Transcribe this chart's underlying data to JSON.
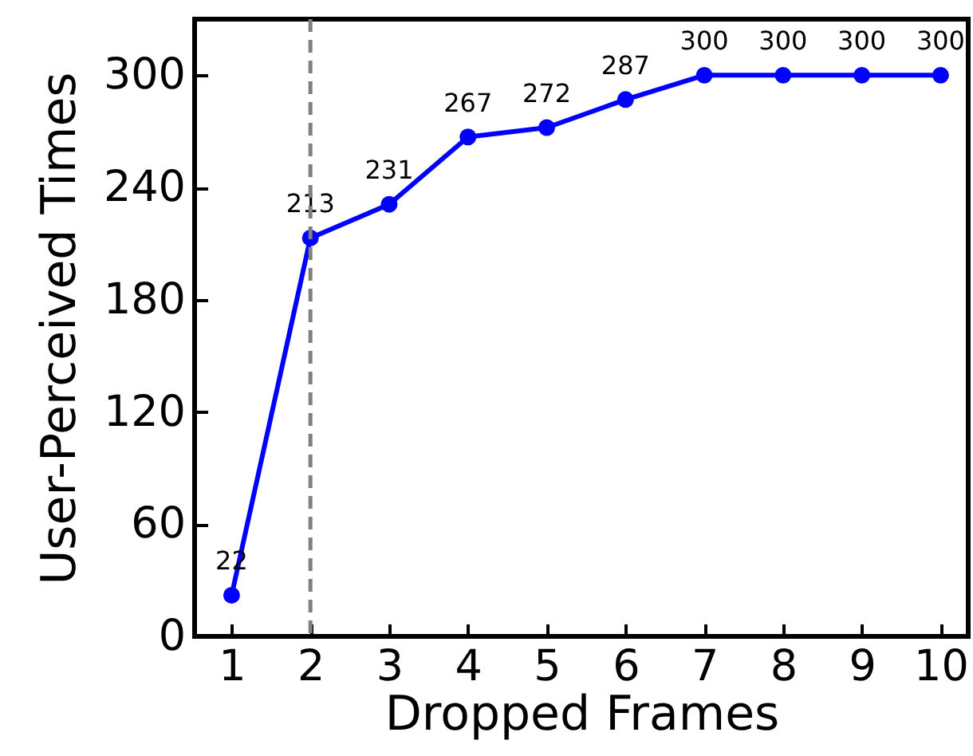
{
  "chart_data": {
    "type": "line",
    "xlabel": "Dropped Frames",
    "ylabel": "User-Perceived Times",
    "x": [
      1,
      2,
      3,
      4,
      5,
      6,
      7,
      8,
      9,
      10
    ],
    "series": [
      {
        "color": "#0000ff",
        "values": [
          22,
          213,
          231,
          267,
          272,
          287,
          300,
          300,
          300,
          300
        ]
      }
    ],
    "xlim": [
      0.53,
      10.35
    ],
    "xticks": [
      1,
      2,
      3,
      4,
      5,
      6,
      7,
      8,
      9,
      10
    ],
    "ylim": [
      0,
      330
    ],
    "yticks": [
      0,
      60,
      120,
      180,
      240,
      300
    ],
    "ref_lines": [
      {
        "axis": "x",
        "value": 2,
        "color": "#808080",
        "line_style": "dashed"
      }
    ],
    "data_labels": true,
    "grid": false,
    "marker": "circle",
    "line_style": "solid"
  }
}
